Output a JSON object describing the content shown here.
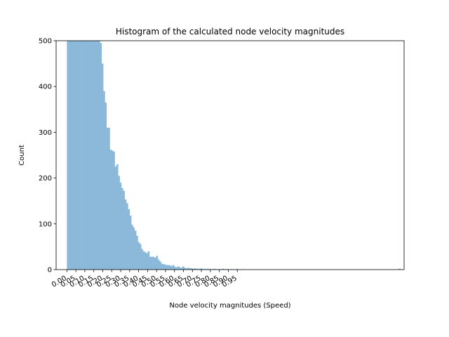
{
  "chart_data": {
    "type": "bar",
    "title": "Histogram of the calculated node velocity magnitudes",
    "xlabel": "Node velocity magnitudes (Speed)",
    "ylabel": "Count",
    "xlim": [
      -0.06,
      1.88
    ],
    "ylim": [
      0,
      500
    ],
    "yticks": [
      0,
      100,
      200,
      300,
      400,
      500
    ],
    "xticks": [
      0.0,
      0.05,
      0.1,
      0.15,
      0.2,
      0.25,
      0.3,
      0.35,
      0.4,
      0.45,
      0.5,
      0.55,
      0.6,
      0.65,
      0.7,
      0.75,
      0.8,
      0.85,
      0.9,
      0.95
    ],
    "xtick_labels": [
      "0.00",
      "0.05",
      "0.10",
      "0.15",
      "0.20",
      "0.25",
      "0.30",
      "0.35",
      "0.40",
      "0.45",
      "0.50",
      "0.55",
      "0.60",
      "0.65",
      "0.70",
      "0.75",
      "0.80",
      "0.85",
      "0.90",
      "0.95"
    ],
    "bin_start": 0.0,
    "bin_width": 0.0092,
    "bar_color": "#8cb9d9",
    "grid": false,
    "counts": [
      600,
      600,
      600,
      600,
      600,
      600,
      600,
      600,
      600,
      600,
      600,
      600,
      600,
      600,
      600,
      600,
      600,
      600,
      600,
      600,
      495,
      450,
      390,
      365,
      310,
      310,
      262,
      260,
      258,
      225,
      230,
      205,
      190,
      178,
      172,
      153,
      145,
      132,
      118,
      98,
      92,
      85,
      74,
      60,
      56,
      45,
      40,
      38,
      36,
      40,
      28,
      28,
      28,
      26,
      30,
      22,
      18,
      13,
      12,
      11,
      10,
      10,
      9,
      8,
      10,
      6,
      5,
      7,
      5,
      4,
      7,
      4,
      3,
      4,
      3,
      3,
      2,
      3,
      2,
      2,
      2,
      3,
      1,
      2,
      1,
      2,
      1,
      1,
      1,
      2,
      1,
      1,
      1,
      1,
      2,
      1,
      1,
      1,
      0,
      1,
      1,
      0,
      1,
      1,
      0,
      0,
      1,
      0,
      0,
      0
    ],
    "outlier_bin": {
      "x": 1.855,
      "count": 2
    }
  }
}
